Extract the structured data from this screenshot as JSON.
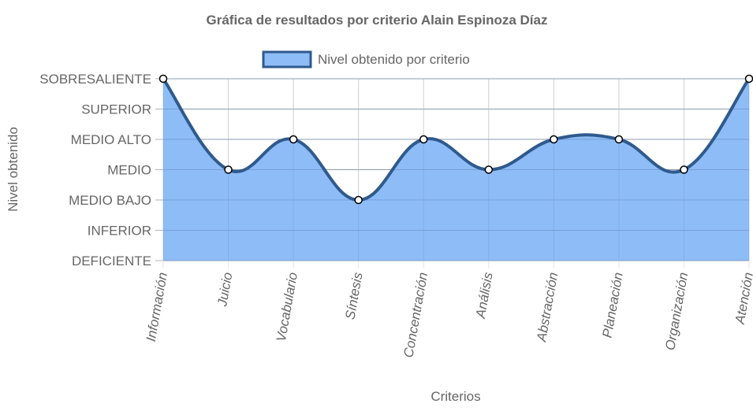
{
  "chart_data": {
    "type": "area",
    "title": "Gráfica de resultados por criterio Alain Espinoza Díaz",
    "xlabel": "Criterios",
    "ylabel": "Nivel obtenido",
    "y_levels": [
      "DEFICIENTE",
      "INFERIOR",
      "MEDIO BAJO",
      "MEDIO",
      "MEDIO ALTO",
      "SUPERIOR",
      "SOBRESALIENTE"
    ],
    "ylim": [
      0,
      6
    ],
    "categories": [
      "Información",
      "Juicio",
      "Vocabulario",
      "Síntesis",
      "Concentración",
      "Análisis",
      "Abstracción",
      "Planeación",
      "Organización",
      "Atención"
    ],
    "series": [
      {
        "name": "Nivel obtenido por criterio",
        "values": [
          6,
          3,
          4,
          2,
          4,
          3,
          4,
          4,
          3,
          6
        ]
      }
    ],
    "legend_position": "top",
    "grid": true,
    "colors": {
      "fill": "#8ebcf7",
      "line": "#2f5a8d",
      "grid": "#e6e6e6",
      "axis_grid": "#b3b3b3",
      "text": "#666666"
    }
  }
}
